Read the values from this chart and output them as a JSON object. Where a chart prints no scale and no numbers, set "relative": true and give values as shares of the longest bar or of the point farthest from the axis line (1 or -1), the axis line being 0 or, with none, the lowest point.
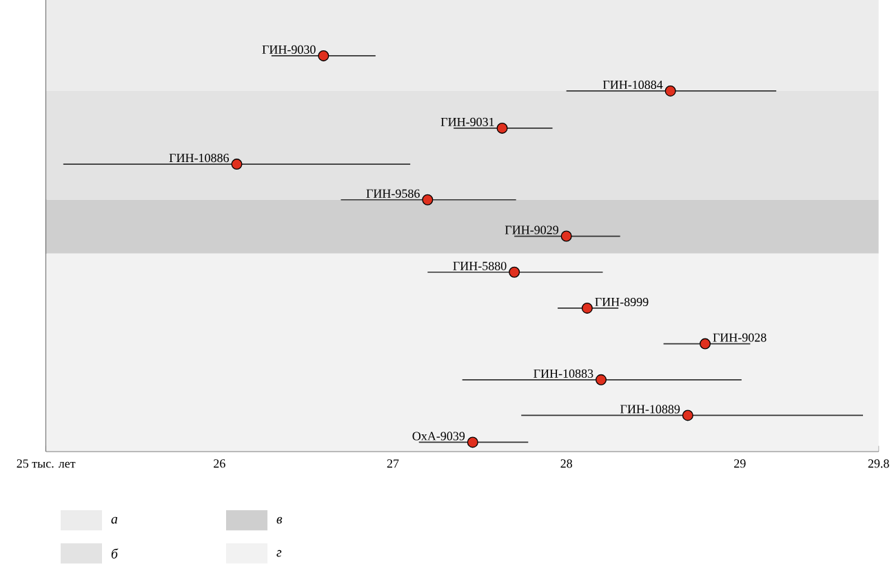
{
  "chart_data": {
    "type": "scatter",
    "relative": true,
    "x": [
      26.6,
      28.6,
      27.63,
      26.1,
      27.2,
      28.0,
      27.7,
      28.12,
      28.8,
      28.2,
      28.7,
      27.46
    ],
    "series": [
      {
        "color": "#e0301e",
        "values": [
          1.0,
          0.911,
          0.817,
          0.726,
          0.636,
          0.544,
          0.453,
          0.362,
          0.272,
          0.181,
          0.091,
          0.023
        ],
        "xerrors": [
          [
            26.3,
            26.9
          ],
          [
            28.0,
            29.21
          ],
          [
            27.35,
            27.92
          ],
          [
            25.1,
            27.1
          ],
          [
            26.7,
            27.71
          ],
          [
            27.7,
            28.31
          ],
          [
            27.2,
            28.21
          ],
          [
            27.95,
            28.3
          ],
          [
            28.56,
            29.06
          ],
          [
            27.4,
            29.01
          ],
          [
            27.74,
            29.71
          ],
          [
            27.15,
            27.78
          ]
        ]
      }
    ],
    "marker": "circle",
    "xlim": [
      25,
      29.8
    ],
    "xticks": [
      {
        "value": 25,
        "label": "25 тыс. лет"
      },
      26,
      27,
      28,
      29,
      29.8
    ],
    "bands": [
      {
        "axis": "y",
        "from": 0.911,
        "to": 1.141,
        "label": "а",
        "color": "#ececec"
      },
      {
        "axis": "y",
        "from": 0.636,
        "to": 0.911,
        "label": "б",
        "color": "#e3e3e3"
      },
      {
        "axis": "y",
        "from": 0.5,
        "to": 0.636,
        "label": "в",
        "color": "#cfcfcf"
      },
      {
        "axis": "y",
        "from": 0.0,
        "to": 0.5,
        "label": "г",
        "color": "#f2f2f2"
      }
    ],
    "legend": "bottom",
    "annotations": [
      {
        "text": "ГИН-9030",
        "x": 26.6,
        "y": 1.0
      },
      {
        "text": "ГИН-10884",
        "x": 28.6,
        "y": 0.911
      },
      {
        "text": "ГИН-9031",
        "x": 27.63,
        "y": 0.817
      },
      {
        "text": "ГИН-10886",
        "x": 26.1,
        "y": 0.726
      },
      {
        "text": "ГИН-9586",
        "x": 27.2,
        "y": 0.636
      },
      {
        "text": "ГИН-9029",
        "x": 28.0,
        "y": 0.544
      },
      {
        "text": "ГИН-5880",
        "x": 27.7,
        "y": 0.453
      },
      {
        "text": "ГИН-8999",
        "x": 28.12,
        "y": 0.362
      },
      {
        "text": "ГИН-9028",
        "x": 28.8,
        "y": 0.272
      },
      {
        "text": "ГИН-10883",
        "x": 28.2,
        "y": 0.181
      },
      {
        "text": "ГИН-10889",
        "x": 28.7,
        "y": 0.091
      },
      {
        "text": "OxA-9039",
        "x": 27.46,
        "y": 0.023
      }
    ]
  }
}
